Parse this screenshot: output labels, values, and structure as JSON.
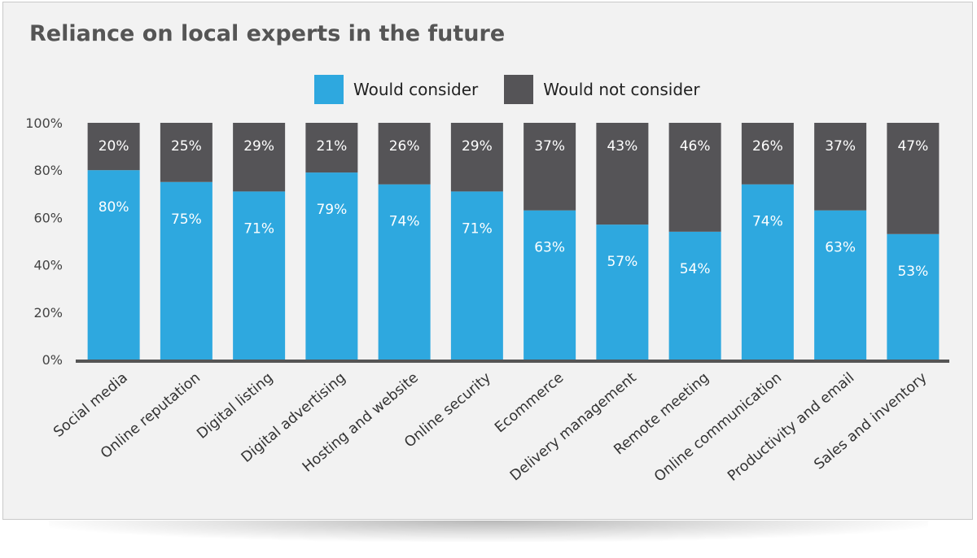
{
  "title": "Reliance on local experts in the future",
  "colors": {
    "consider": "#2ea8df",
    "not_consider": "#555457",
    "axis": "#555555"
  },
  "chart_data": {
    "type": "bar",
    "stacked": true,
    "title": "Reliance on local experts in the future",
    "ylim": [
      0,
      100
    ],
    "yticks": [
      "0%",
      "20%",
      "40%",
      "60%",
      "80%",
      "100%"
    ],
    "legend_position": "top-center",
    "categories": [
      "Social media",
      "Online reputation",
      "Digital listing",
      "Digital advertising",
      "Hosting and website",
      "Online security",
      "Ecommerce",
      "Delivery management",
      "Remote meeting",
      "Online communication",
      "Productivity and email",
      "Sales and inventory"
    ],
    "series": [
      {
        "name": "Would consider",
        "values": [
          80,
          75,
          71,
          79,
          74,
          71,
          63,
          57,
          54,
          74,
          63,
          53
        ],
        "labels": [
          "80%",
          "75%",
          "71%",
          "79%",
          "74%",
          "71%",
          "63%",
          "57%",
          "54%",
          "74%",
          "63%",
          "53%"
        ]
      },
      {
        "name": "Would not consider",
        "values": [
          20,
          25,
          29,
          21,
          26,
          29,
          37,
          43,
          46,
          26,
          37,
          47
        ],
        "labels": [
          "20%",
          "25%",
          "29%",
          "21%",
          "26%",
          "29%",
          "37%",
          "43%",
          "46%",
          "26%",
          "37%",
          "47%"
        ]
      }
    ]
  }
}
